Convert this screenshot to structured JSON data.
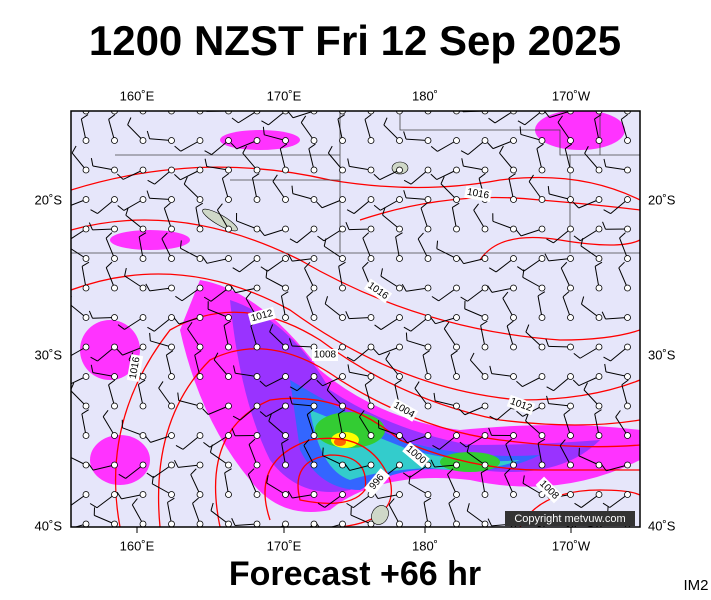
{
  "title": "1200 NZST Fri 12 Sep 2025",
  "footer": "Forecast +66 hr",
  "image_id": "IM2",
  "copyright": "Copyright metvuw.com",
  "longitude_labels": [
    "160˚E",
    "170˚E",
    "180˚",
    "170˚W"
  ],
  "latitude_labels": [
    "20˚S",
    "30˚S",
    "40˚S"
  ],
  "isobar_labels": [
    "1016",
    "1016",
    "1012",
    "1008",
    "1004",
    "1012",
    "1000",
    "996",
    "1008",
    "1016"
  ]
}
